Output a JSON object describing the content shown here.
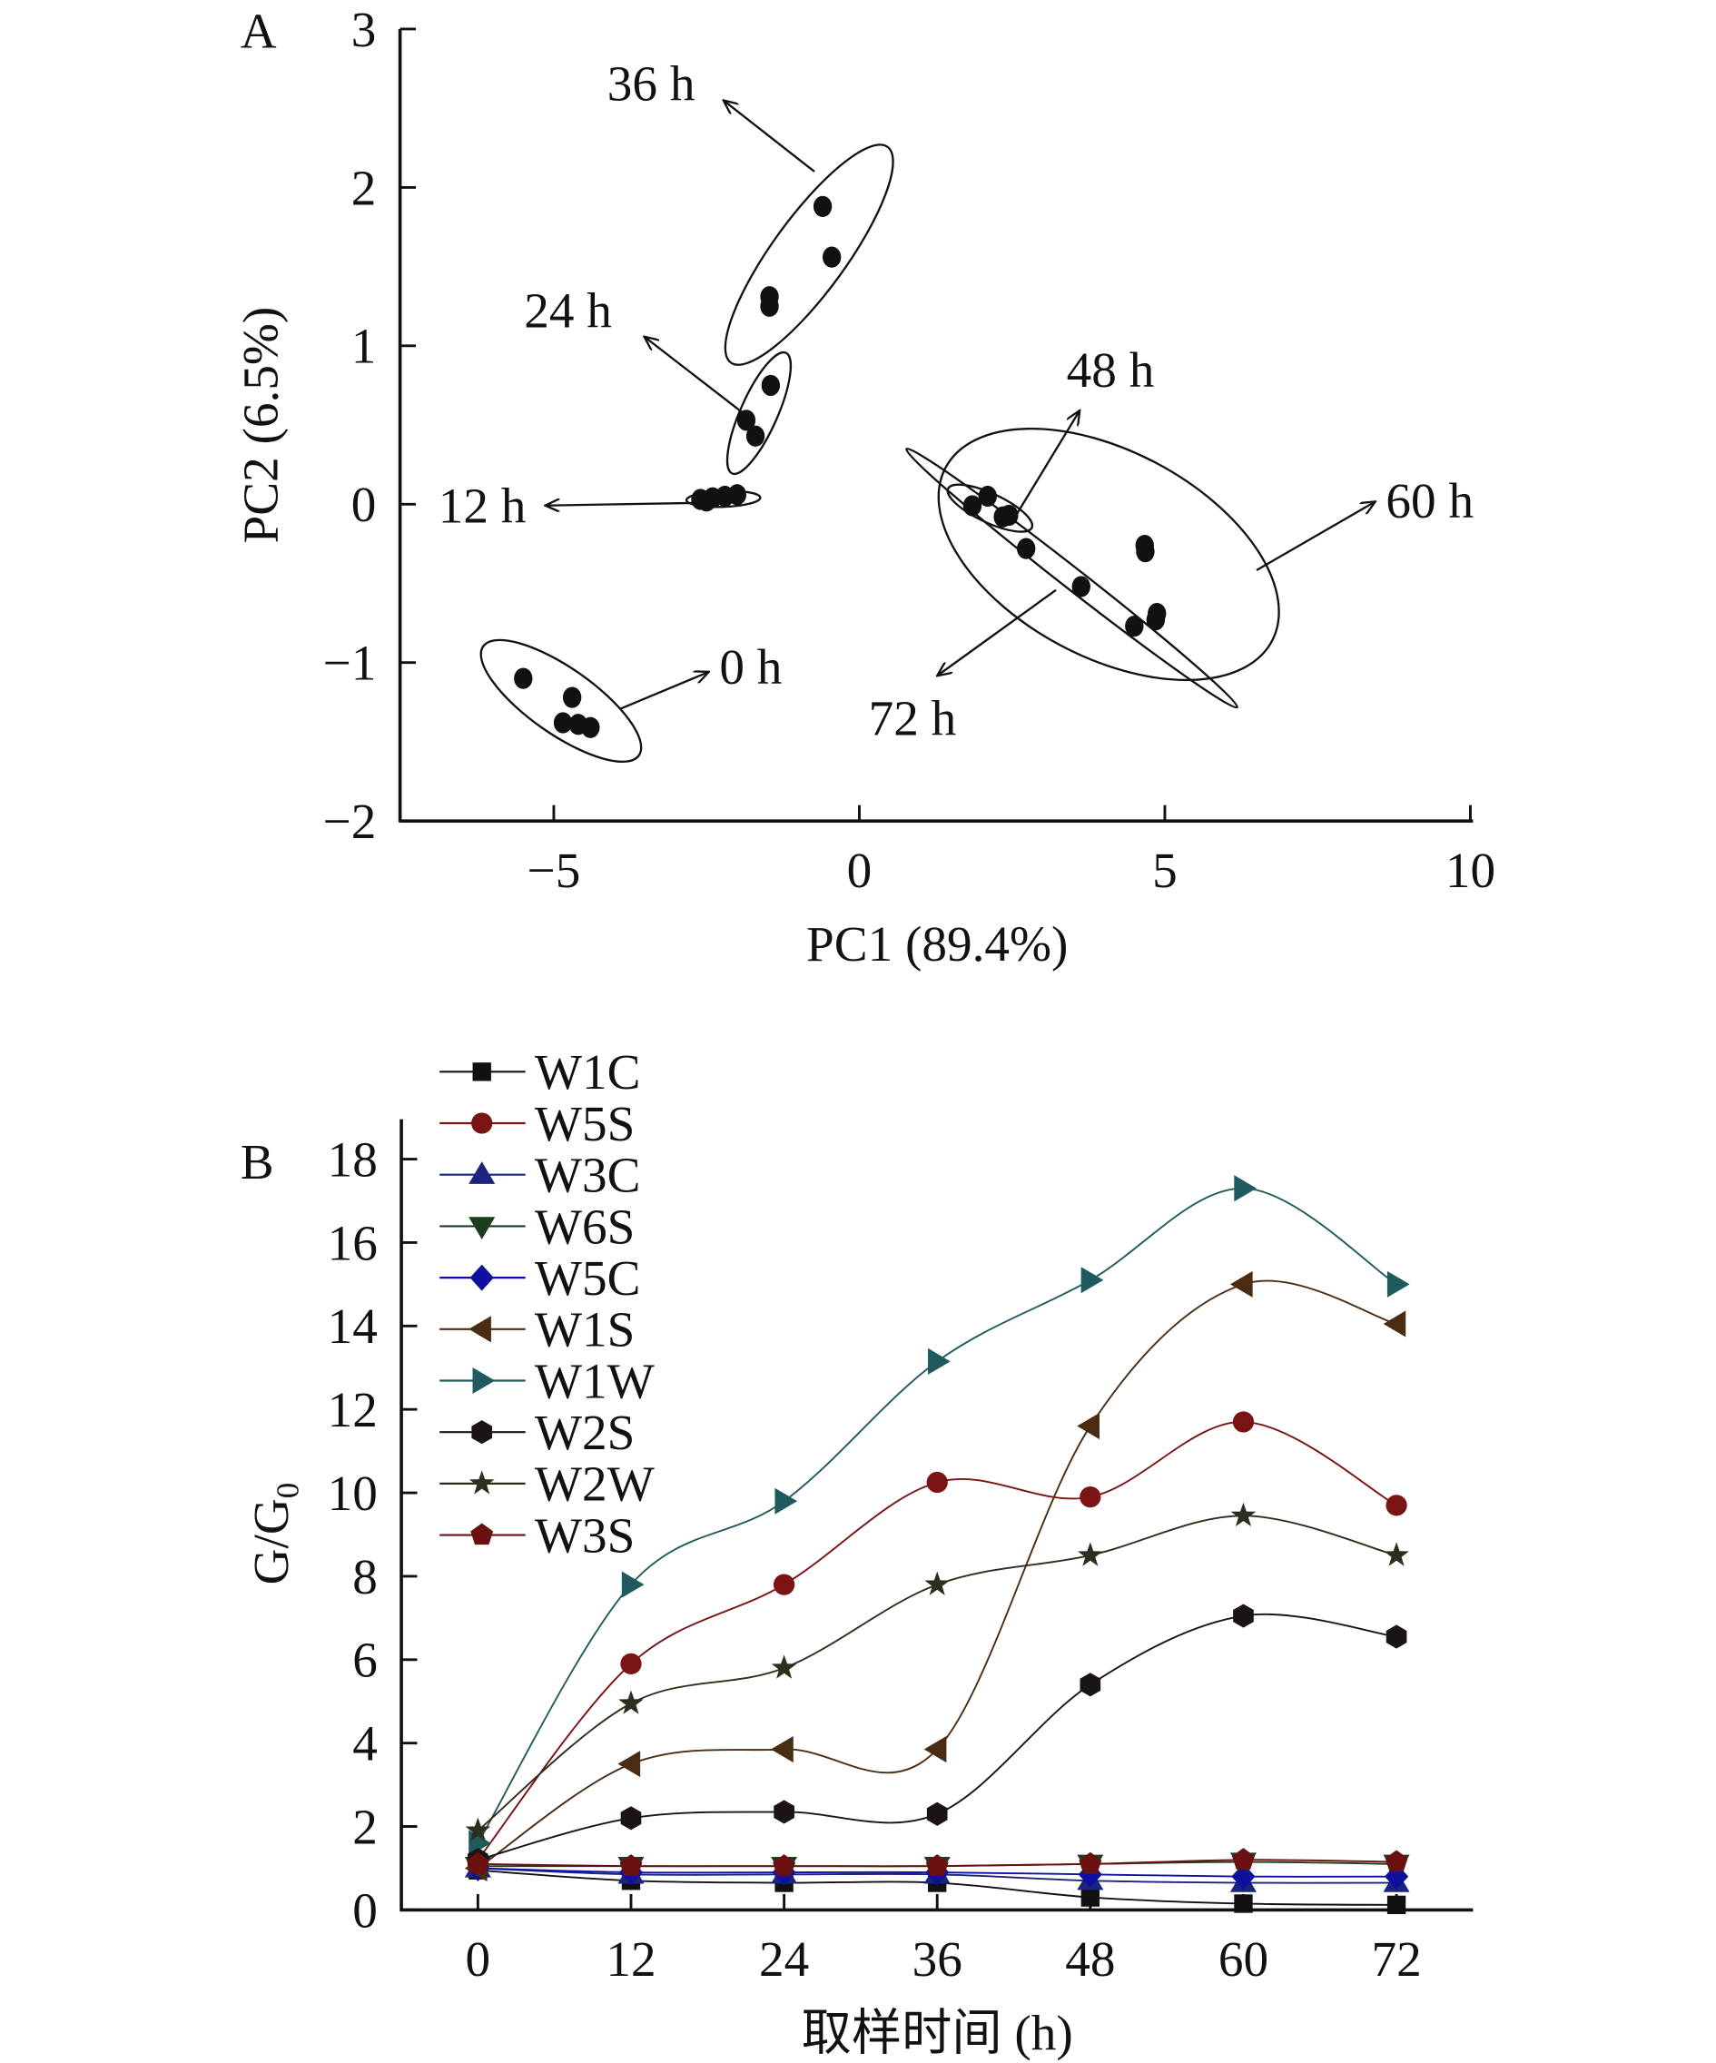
{
  "chart_data": [
    {
      "type": "scatter",
      "panel_label": "A",
      "title": "",
      "xlabel": "PC1 (89.4%)",
      "ylabel": "PC2 (6.5%)",
      "xlim": [
        -7.55,
        10
      ],
      "ylim": [
        -2,
        3
      ],
      "xticks": [
        -5,
        0,
        5,
        10
      ],
      "xtick_labels": [
        "−5",
        "0",
        "5",
        "10"
      ],
      "yticks": [
        3,
        2,
        1,
        0,
        -1,
        -2
      ],
      "ytick_labels": [
        "3",
        "2",
        "1",
        "0",
        "−1",
        "−2"
      ],
      "grid": false,
      "groups": [
        {
          "name": "0 h",
          "label": "0 h",
          "points": [
            [
              -5.5,
              -1.1
            ],
            [
              -4.7,
              -1.22
            ],
            [
              -4.85,
              -1.38
            ],
            [
              -4.6,
              -1.39
            ],
            [
              -4.4,
              -1.41
            ]
          ]
        },
        {
          "name": "12 h",
          "label": "12 h",
          "points": [
            [
              -2.6,
              0.03
            ],
            [
              -2.5,
              0.02
            ],
            [
              -2.4,
              0.04
            ],
            [
              -2.2,
              0.05
            ],
            [
              -2.0,
              0.06
            ]
          ]
        },
        {
          "name": "24 h",
          "label": "24 h",
          "points": [
            [
              -1.45,
              0.75
            ],
            [
              -1.85,
              0.53
            ],
            [
              -1.7,
              0.43
            ]
          ]
        },
        {
          "name": "36 h",
          "label": "36 h",
          "points": [
            [
              -0.6,
              1.88
            ],
            [
              -0.45,
              1.56
            ],
            [
              -1.47,
              1.31
            ],
            [
              -1.47,
              1.25
            ]
          ]
        },
        {
          "name": "48 h",
          "label": "48 h",
          "points": [
            [
              1.85,
              -0.01
            ],
            [
              2.1,
              0.05
            ],
            [
              2.35,
              -0.08
            ],
            [
              2.45,
              -0.07
            ]
          ]
        },
        {
          "name": "60 h",
          "label": "60 h",
          "points": [
            [
              4.67,
              -0.26
            ],
            [
              4.68,
              -0.3
            ],
            [
              4.87,
              -0.69
            ],
            [
              4.85,
              -0.73
            ]
          ]
        },
        {
          "name": "72 h",
          "label": "72 h",
          "points": [
            [
              2.73,
              -0.28
            ],
            [
              3.63,
              -0.52
            ],
            [
              4.5,
              -0.77
            ]
          ]
        }
      ]
    },
    {
      "type": "line",
      "panel_label": "B",
      "title": "",
      "xlabel": "取样时间 (h)",
      "ylabel": "G/G",
      "ylabel_subscript": "0",
      "x": [
        0,
        12,
        24,
        36,
        48,
        60,
        72
      ],
      "xtick_labels": [
        "0",
        "12",
        "24",
        "36",
        "48",
        "60",
        "72"
      ],
      "xlim": [
        -6,
        78
      ],
      "ylim": [
        0,
        18
      ],
      "yticks": [
        0,
        2,
        4,
        6,
        8,
        10,
        12,
        14,
        16,
        18
      ],
      "ytick_labels": [
        "0",
        "2",
        "4",
        "6",
        "8",
        "10",
        "12",
        "14",
        "16",
        "18"
      ],
      "grid": false,
      "legend_position": "top-left",
      "series": [
        {
          "name": "W1C",
          "marker": "square",
          "color": "#111111",
          "values": [
            0.95,
            0.7,
            0.65,
            0.65,
            0.3,
            0.15,
            0.12
          ]
        },
        {
          "name": "W5S",
          "marker": "circle",
          "color": "#7a1414",
          "values": [
            1.2,
            5.9,
            7.8,
            10.25,
            9.9,
            11.7,
            9.7
          ]
        },
        {
          "name": "W3C",
          "marker": "triangle-up",
          "color": "#1a237e",
          "values": [
            1.0,
            0.85,
            0.85,
            0.85,
            0.7,
            0.65,
            0.65
          ]
        },
        {
          "name": "W6S",
          "marker": "triangle-down",
          "color": "#1e3d1e",
          "values": [
            1.05,
            1.05,
            1.05,
            1.05,
            1.1,
            1.15,
            1.1
          ]
        },
        {
          "name": "W5C",
          "marker": "diamond",
          "color": "#1010a0",
          "values": [
            1.0,
            0.9,
            0.9,
            0.9,
            0.85,
            0.8,
            0.8
          ]
        },
        {
          "name": "W1S",
          "marker": "triangle-left",
          "color": "#4a2c12",
          "values": [
            1.0,
            3.5,
            3.85,
            3.85,
            11.6,
            15.0,
            14.05
          ]
        },
        {
          "name": "W1W",
          "marker": "triangle-right",
          "color": "#1f5a5e",
          "values": [
            1.6,
            7.8,
            9.8,
            13.15,
            15.1,
            17.3,
            15.0
          ]
        },
        {
          "name": "W2S",
          "marker": "hexagon",
          "color": "#1a1418",
          "values": [
            1.2,
            2.2,
            2.35,
            2.3,
            5.4,
            7.05,
            6.55
          ]
        },
        {
          "name": "W2W",
          "marker": "star",
          "color": "#2e2e1e",
          "values": [
            1.9,
            4.95,
            5.8,
            7.8,
            8.5,
            9.45,
            8.5
          ]
        },
        {
          "name": "W3S",
          "marker": "pentagon",
          "color": "#6b1010",
          "values": [
            1.1,
            1.05,
            1.05,
            1.05,
            1.1,
            1.2,
            1.15
          ]
        }
      ]
    }
  ]
}
